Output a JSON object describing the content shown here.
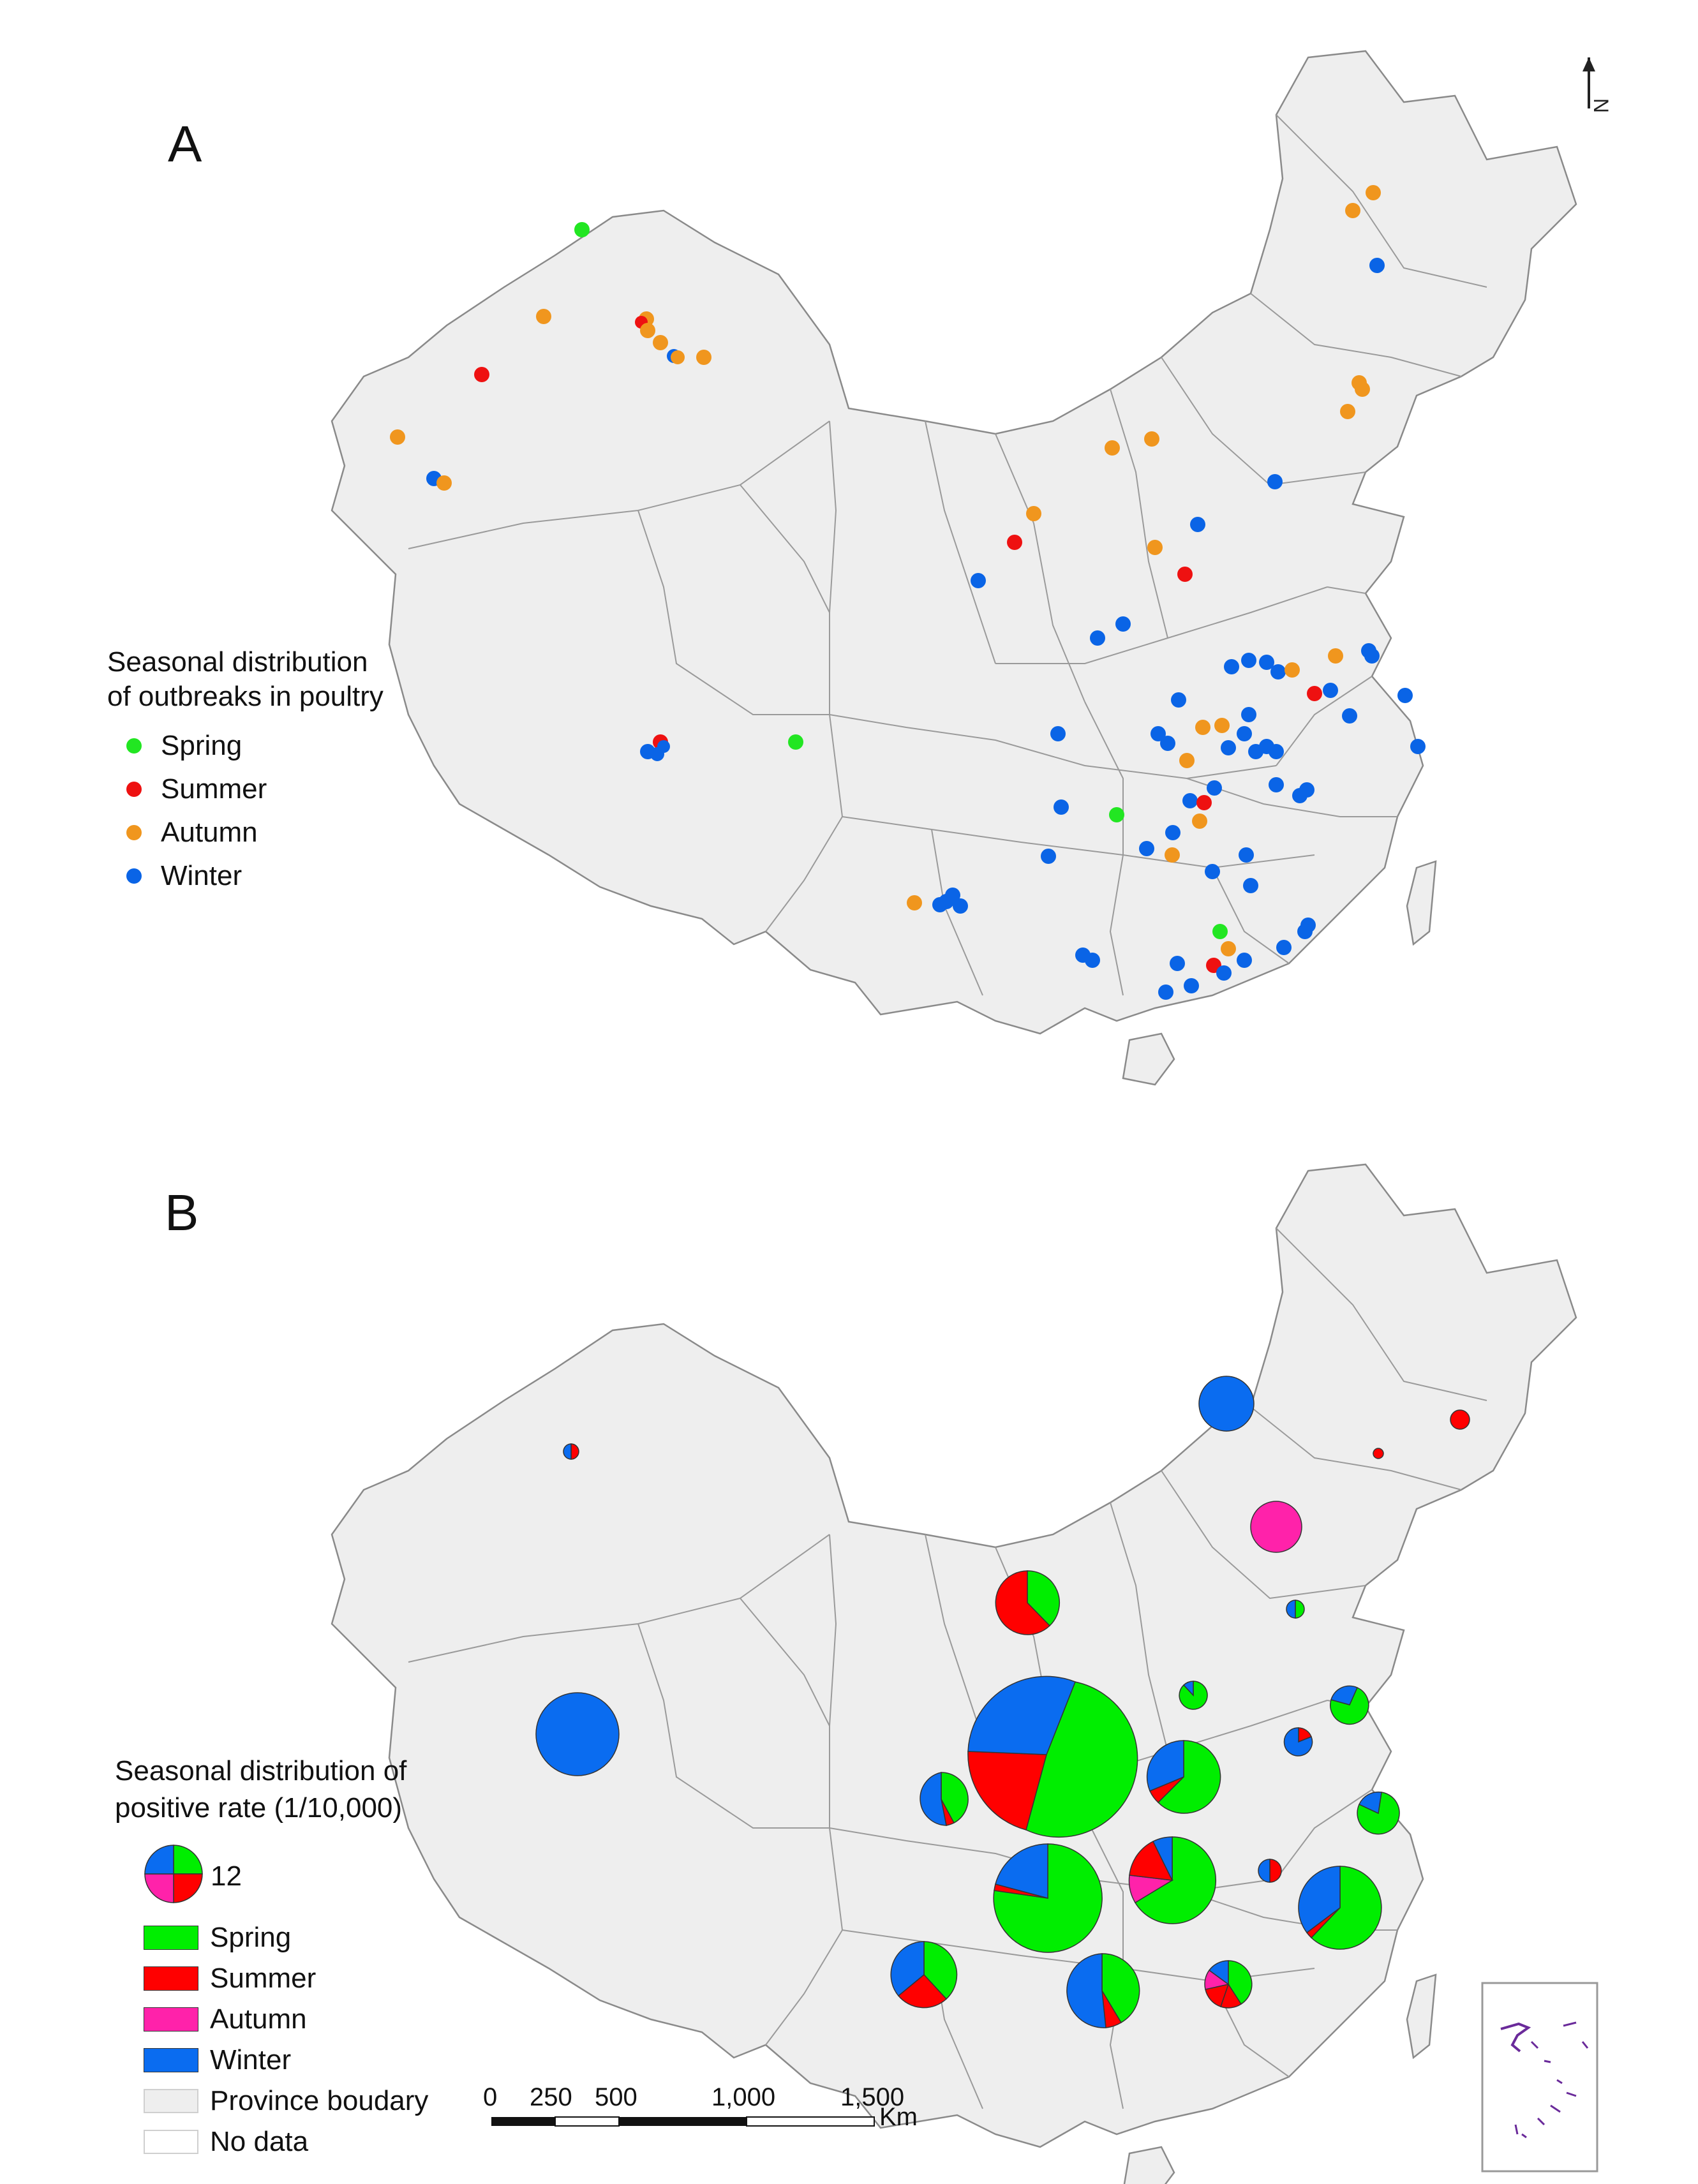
{
  "panel_a": {
    "label": "A",
    "legend_title": [
      "Seasonal distribution",
      "of outbreaks in poultry"
    ],
    "legend": [
      {
        "key": "spring",
        "label": "Spring",
        "color": "#22e622"
      },
      {
        "key": "summer",
        "label": "Summer",
        "color": "#ee1111"
      },
      {
        "key": "autumn",
        "label": "Autumn",
        "color": "#f0961e"
      },
      {
        "key": "winter",
        "label": "Winter",
        "color": "#0a64e6"
      }
    ]
  },
  "panel_b": {
    "label": "B",
    "legend_title": [
      "Seasonal distribution of",
      "positive rate (1/10,000)"
    ],
    "size_reference": "12",
    "legend": [
      {
        "key": "spring",
        "label": "Spring",
        "color": "#00ee00"
      },
      {
        "key": "summer",
        "label": "Summer",
        "color": "#ff0000"
      },
      {
        "key": "autumn",
        "label": "Autumn",
        "color": "#ff22aa"
      },
      {
        "key": "winter",
        "label": "Winter",
        "color": "#0a6cf0"
      },
      {
        "key": "province",
        "label": "Province boudary",
        "color": "#eeeeee"
      },
      {
        "key": "nodata",
        "label": "No data",
        "color": "#ffffff"
      }
    ],
    "scale_bar": {
      "ticks": [
        "0",
        "250",
        "500",
        "1,000",
        "1,500"
      ],
      "unit": "Km"
    }
  },
  "north_arrow": "N"
}
